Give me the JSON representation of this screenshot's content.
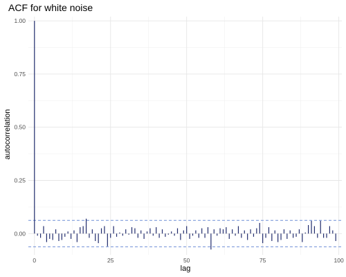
{
  "chart_data": {
    "type": "bar",
    "title": "ACF for white noise",
    "xlabel": "lag",
    "ylabel": "autocorrelation",
    "xlim": [
      -2,
      101
    ],
    "ylim": [
      -0.1,
      1.02
    ],
    "xticks": [
      0,
      25,
      50,
      75,
      100
    ],
    "xtick_labels": [
      "0",
      "25",
      "50",
      "75",
      "100"
    ],
    "yticks": [
      0,
      0.25,
      0.5,
      0.75,
      1
    ],
    "ytick_labels": [
      "0.00",
      "0.25",
      "0.50",
      "0.75",
      "1.00"
    ],
    "grid": true,
    "bar_color": "#1f2a6b",
    "confidence_bound": 0.062,
    "confidence_color": "#6f8fd6",
    "lags": [
      0,
      1,
      2,
      3,
      4,
      5,
      6,
      7,
      8,
      9,
      10,
      11,
      12,
      13,
      14,
      15,
      16,
      17,
      18,
      19,
      20,
      21,
      22,
      23,
      24,
      25,
      26,
      27,
      28,
      29,
      30,
      31,
      32,
      33,
      34,
      35,
      36,
      37,
      38,
      39,
      40,
      41,
      42,
      43,
      44,
      45,
      46,
      47,
      48,
      49,
      50,
      51,
      52,
      53,
      54,
      55,
      56,
      57,
      58,
      59,
      60,
      61,
      62,
      63,
      64,
      65,
      66,
      67,
      68,
      69,
      70,
      71,
      72,
      73,
      74,
      75,
      76,
      77,
      78,
      79,
      80,
      81,
      82,
      83,
      84,
      85,
      86,
      87,
      88,
      89,
      90,
      91,
      92,
      93,
      94,
      95,
      96,
      97,
      98,
      99
    ],
    "values": [
      1.0,
      -0.01,
      -0.02,
      0.035,
      -0.04,
      -0.025,
      -0.03,
      0.02,
      -0.035,
      -0.03,
      -0.015,
      0.01,
      -0.025,
      0.015,
      -0.04,
      0.03,
      0.035,
      0.07,
      -0.02,
      0.02,
      -0.035,
      -0.045,
      0.025,
      0.035,
      -0.06,
      -0.02,
      0.035,
      -0.015,
      0.005,
      -0.01,
      0.02,
      -0.005,
      0.03,
      0.025,
      -0.02,
      0.015,
      -0.025,
      0.01,
      0.025,
      -0.01,
      0.03,
      -0.02,
      0.02,
      -0.015,
      -0.005,
      0.01,
      -0.01,
      0.025,
      -0.03,
      0.015,
      0.035,
      -0.025,
      -0.01,
      0.015,
      -0.02,
      0.025,
      -0.02,
      0.03,
      -0.075,
      0.02,
      -0.01,
      0.025,
      0.02,
      0.03,
      -0.025,
      0.02,
      -0.01,
      0.035,
      -0.02,
      0.015,
      -0.03,
      0.02,
      -0.015,
      0.025,
      0.05,
      -0.045,
      -0.02,
      0.03,
      -0.035,
      0.015,
      -0.04,
      -0.03,
      0.02,
      -0.025,
      0.015,
      -0.02,
      -0.015,
      0.02,
      -0.04,
      0.005,
      0.04,
      0.06,
      0.035,
      -0.02,
      0.06,
      -0.02,
      -0.02,
      0.035,
      0.015,
      -0.035
    ]
  }
}
